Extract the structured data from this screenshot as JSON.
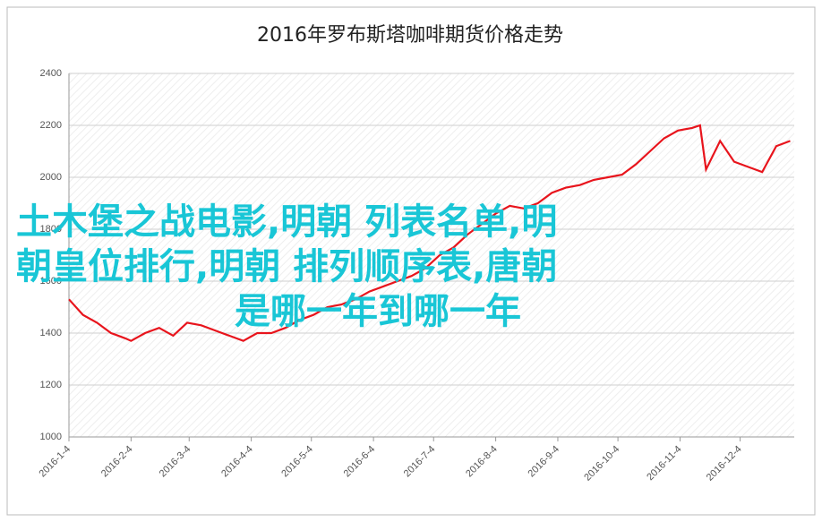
{
  "chart_data": {
    "type": "line",
    "title": "2016年罗布斯塔咖啡期货价格走势",
    "x": [
      "2016-1-4",
      "2016-1-11",
      "2016-1-18",
      "2016-1-25",
      "2016-2-1",
      "2016-2-4",
      "2016-2-11",
      "2016-2-18",
      "2016-2-25",
      "2016-3-3",
      "2016-3-10",
      "2016-3-17",
      "2016-3-24",
      "2016-3-31",
      "2016-4-7",
      "2016-4-14",
      "2016-4-21",
      "2016-4-28",
      "2016-5-5",
      "2016-5-12",
      "2016-5-19",
      "2016-5-26",
      "2016-6-2",
      "2016-6-9",
      "2016-6-16",
      "2016-6-23",
      "2016-6-30",
      "2016-7-7",
      "2016-7-14",
      "2016-7-21",
      "2016-7-28",
      "2016-8-4",
      "2016-8-11",
      "2016-8-18",
      "2016-8-25",
      "2016-9-1",
      "2016-9-8",
      "2016-9-15",
      "2016-9-22",
      "2016-9-29",
      "2016-10-6",
      "2016-10-13",
      "2016-10-20",
      "2016-10-27",
      "2016-11-3",
      "2016-11-10",
      "2016-11-14",
      "2016-11-17",
      "2016-11-24",
      "2016-12-1",
      "2016-12-8",
      "2016-12-15",
      "2016-12-22",
      "2016-12-29"
    ],
    "series": [
      {
        "color": "#e8141c",
        "values": [
          1530,
          1470,
          1440,
          1400,
          1380,
          1370,
          1400,
          1420,
          1390,
          1440,
          1430,
          1410,
          1390,
          1370,
          1400,
          1400,
          1420,
          1450,
          1470,
          1500,
          1510,
          1530,
          1560,
          1580,
          1600,
          1620,
          1650,
          1700,
          1730,
          1780,
          1820,
          1860,
          1890,
          1880,
          1900,
          1940,
          1960,
          1970,
          1990,
          2000,
          2010,
          2050,
          2100,
          2150,
          2180,
          2190,
          2200,
          2030,
          2140,
          2060,
          2040,
          2020,
          2120,
          2140
        ]
      }
    ],
    "xlim": [
      "2016-1-4",
      "2016-12-31"
    ],
    "xticks": [
      "2016-1-4",
      "2016-2-4",
      "2016-3-4",
      "2016-4-4",
      "2016-5-4",
      "2016-6-4",
      "2016-7-4",
      "2016-8-4",
      "2016-9-4",
      "2016-10-4",
      "2016-11-4",
      "2016-12-4"
    ],
    "ylim": [
      1000,
      2400
    ],
    "yticks": [
      1000,
      1200,
      1400,
      1600,
      1800,
      2000,
      2200,
      2400
    ],
    "grid": true
  },
  "overlay": {
    "lines": [
      "土木堡之战电影,明朝 列表名单,明",
      "朝皇位排行,明朝 排列顺序表,唐朝",
      "是哪一年到哪一年"
    ]
  }
}
